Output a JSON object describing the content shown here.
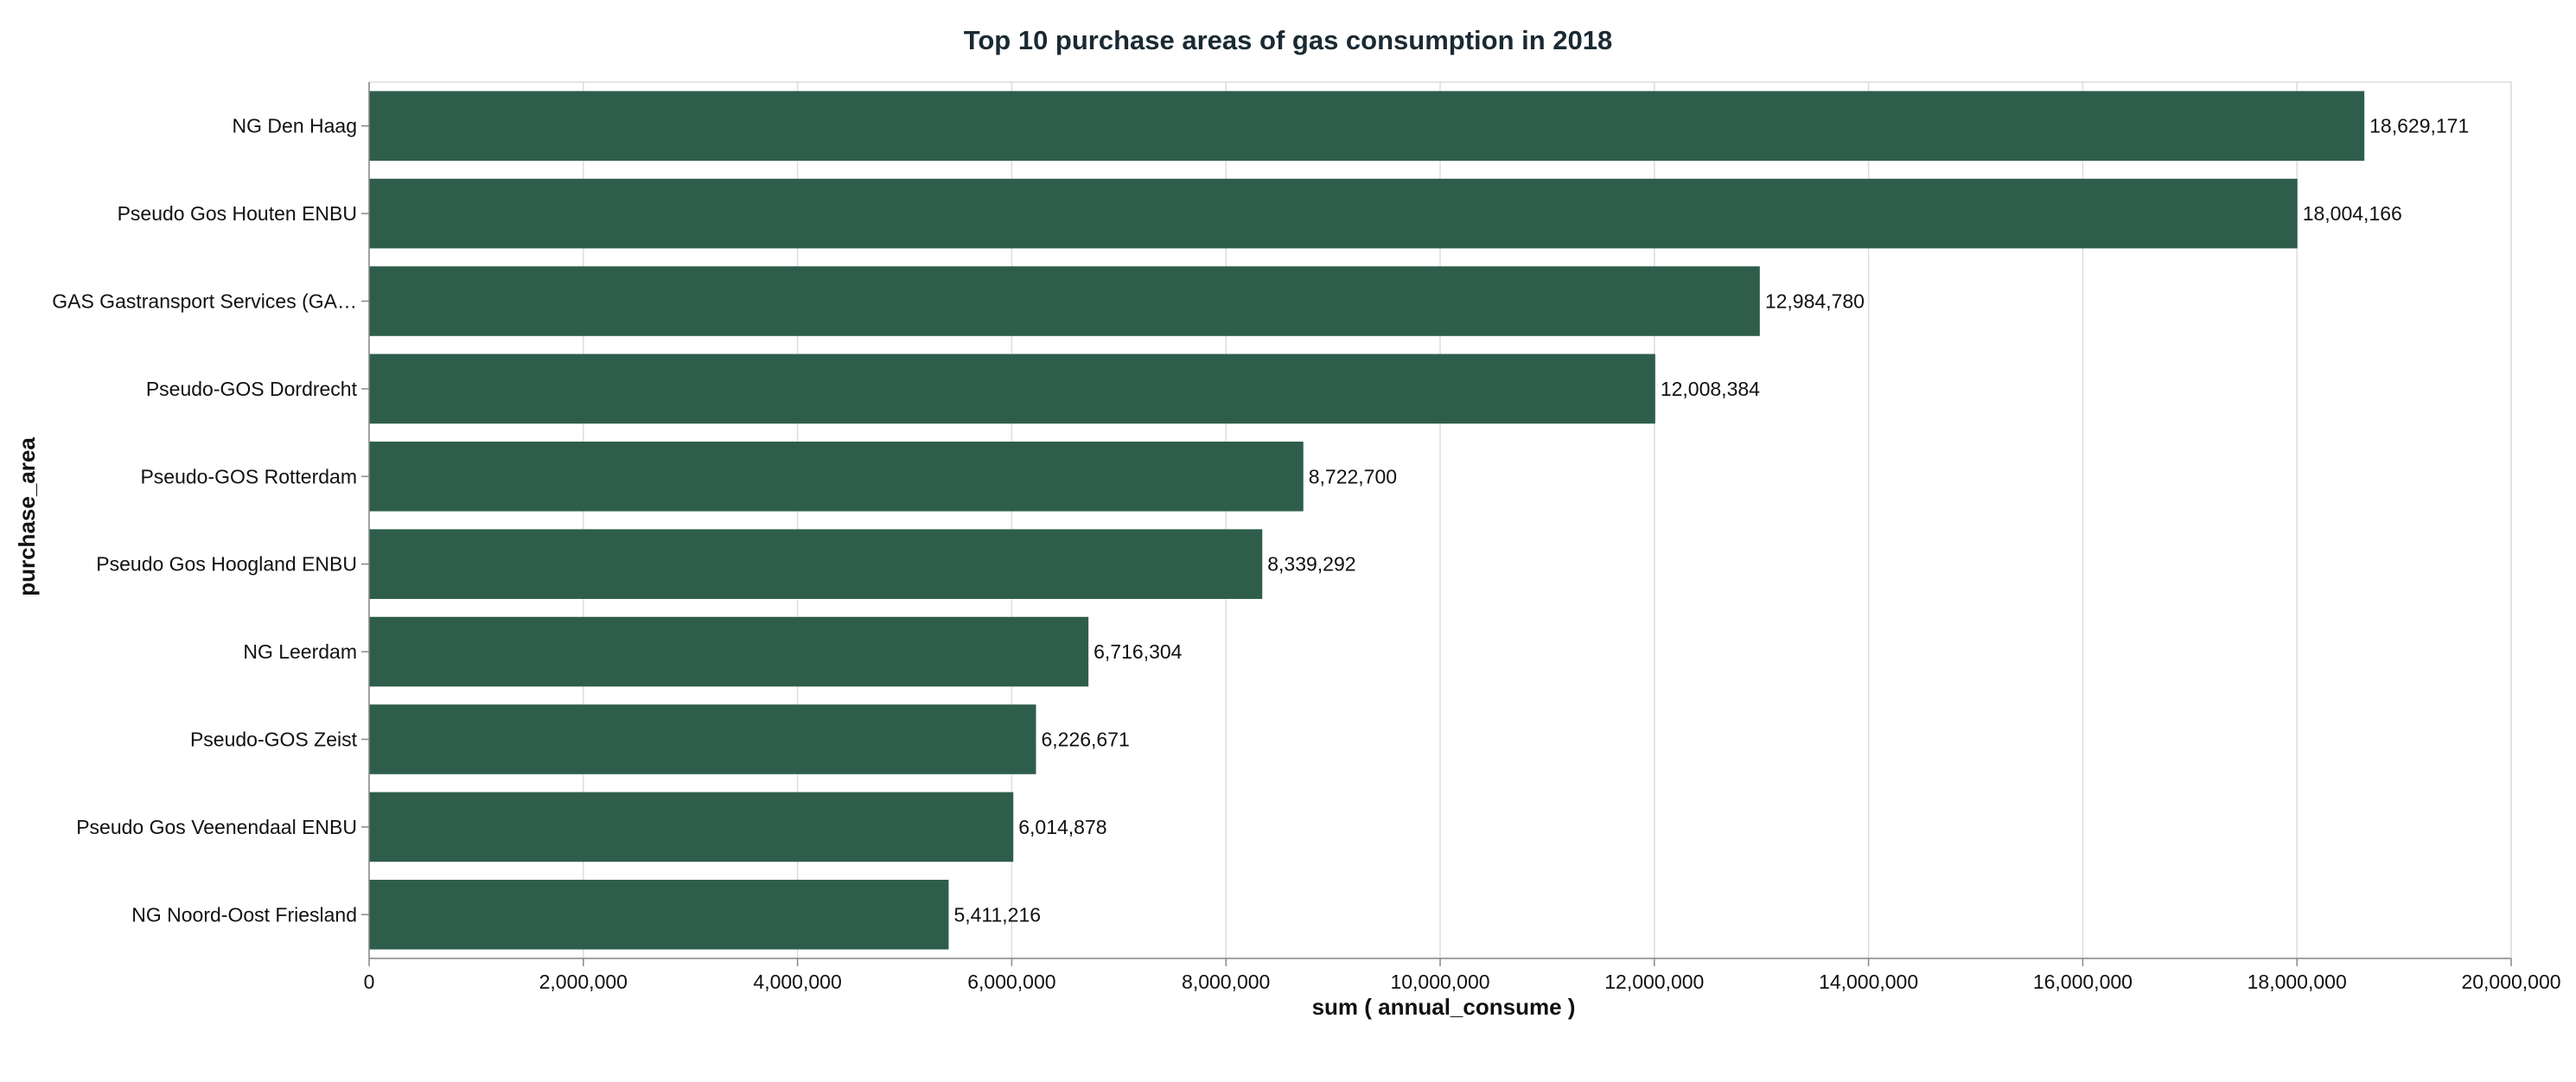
{
  "chart_data": {
    "type": "bar",
    "orientation": "horizontal",
    "title": "Top 10 purchase areas of gas consumption in 2018",
    "xlabel": "sum ( annual_consume )",
    "ylabel": "purchase_area",
    "xlim": [
      0,
      20000000
    ],
    "x_ticks": [
      0,
      2000000,
      4000000,
      6000000,
      8000000,
      10000000,
      12000000,
      14000000,
      16000000,
      18000000,
      20000000
    ],
    "x_tick_labels": [
      "0",
      "2,000,000",
      "4,000,000",
      "6,000,000",
      "8,000,000",
      "10,000,000",
      "12,000,000",
      "14,000,000",
      "16,000,000",
      "18,000,000",
      "20,000,000"
    ],
    "categories": [
      "NG Den Haag",
      "Pseudo Gos Houten ENBU",
      "GAS Gastransport Services (GA…",
      "Pseudo-GOS Dordrecht",
      "Pseudo-GOS Rotterdam",
      "Pseudo Gos Hoogland ENBU",
      "NG Leerdam",
      "Pseudo-GOS Zeist",
      "Pseudo Gos Veenendaal ENBU",
      "NG Noord-Oost Friesland"
    ],
    "values": [
      18629171,
      18004166,
      12984780,
      12008384,
      8722700,
      8339292,
      6716304,
      6226671,
      6014878,
      5411216
    ],
    "data_labels": [
      "18,629,171",
      "18,004,166",
      "12,984,780",
      "12,008,384",
      "8,722,700",
      "8,339,292",
      "6,716,304",
      "6,226,671",
      "6,014,878",
      "5,411,216"
    ],
    "bar_color": "#2e5e4b",
    "grid": true,
    "legend": "none"
  }
}
